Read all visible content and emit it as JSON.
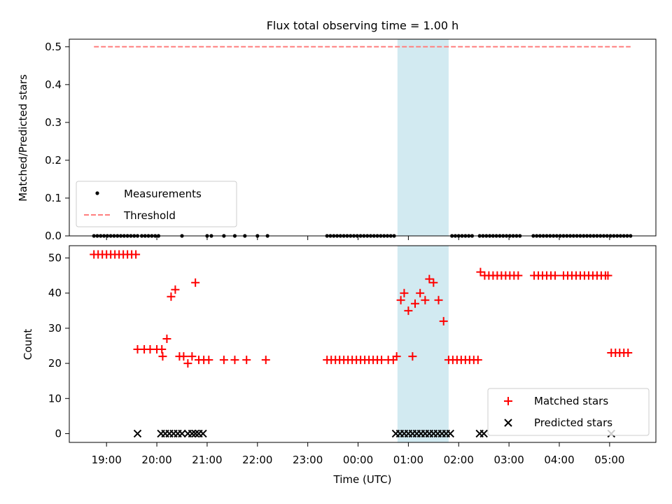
{
  "figure": {
    "title": "Flux total observing time = 1.00 h",
    "xlabel": "Time (UTC)",
    "xticks": [
      "19:00",
      "20:00",
      "21:00",
      "22:00",
      "23:00",
      "00:00",
      "01:00",
      "02:00",
      "03:00",
      "04:00",
      "05:00"
    ],
    "shade_color": "#add8e6"
  },
  "chart_data": [
    {
      "type": "scatter",
      "name": "top-panel",
      "ylabel": "Matched/Predicted stars",
      "ylim": [
        0,
        0.52
      ],
      "yticks": [
        "0.0",
        "0.1",
        "0.2",
        "0.3",
        "0.4",
        "0.5"
      ],
      "legend_position": "lower-left",
      "shaded_interval": [
        "00:47",
        "01:48"
      ],
      "threshold": {
        "name": "Threshold",
        "value": 0.5,
        "x_range": [
          "18:45",
          "05:25"
        ],
        "color": "#ff7f7f"
      },
      "measurements": {
        "name": "Measurements",
        "value": 0,
        "color": "#000000",
        "x": [
          "18:45",
          "18:49",
          "18:53",
          "18:57",
          "19:01",
          "19:05",
          "19:09",
          "19:13",
          "19:17",
          "19:21",
          "19:25",
          "19:29",
          "19:33",
          "19:37",
          "19:42",
          "19:46",
          "19:50",
          "19:54",
          "19:58",
          "20:02",
          "20:30",
          "21:00",
          "21:05",
          "21:20",
          "21:33",
          "21:45",
          "22:00",
          "22:12",
          "23:23",
          "23:27",
          "23:31",
          "23:35",
          "23:39",
          "23:43",
          "23:47",
          "23:51",
          "23:55",
          "23:59",
          "00:03",
          "00:07",
          "00:11",
          "00:15",
          "00:19",
          "00:23",
          "00:27",
          "00:31",
          "00:35",
          "00:39",
          "00:43",
          "01:52",
          "01:56",
          "02:00",
          "02:04",
          "02:08",
          "02:12",
          "02:16",
          "02:25",
          "02:29",
          "02:33",
          "02:37",
          "02:41",
          "02:45",
          "02:49",
          "02:53",
          "02:57",
          "03:01",
          "03:05",
          "03:09",
          "03:13",
          "03:29",
          "03:33",
          "03:37",
          "03:41",
          "03:45",
          "03:49",
          "03:53",
          "03:57",
          "04:01",
          "04:05",
          "04:09",
          "04:13",
          "04:17",
          "04:21",
          "04:25",
          "04:29",
          "04:33",
          "04:37",
          "04:41",
          "04:45",
          "04:49",
          "04:53",
          "04:57",
          "05:01",
          "05:05",
          "05:09",
          "05:13",
          "05:17",
          "05:21",
          "05:25"
        ]
      }
    },
    {
      "type": "scatter",
      "name": "bottom-panel",
      "ylabel": "Count",
      "ylim": [
        -2.5,
        53.5
      ],
      "yticks": [
        "0",
        "10",
        "20",
        "30",
        "40",
        "50"
      ],
      "legend_position": "lower-right",
      "shaded_interval": [
        "00:47",
        "01:48"
      ],
      "series": [
        {
          "name": "Matched stars",
          "marker": "plus",
          "color": "#ff0000",
          "points": [
            [
              "18:45",
              51
            ],
            [
              "18:50",
              51
            ],
            [
              "18:55",
              51
            ],
            [
              "19:00",
              51
            ],
            [
              "19:05",
              51
            ],
            [
              "19:10",
              51
            ],
            [
              "19:15",
              51
            ],
            [
              "19:20",
              51
            ],
            [
              "19:25",
              51
            ],
            [
              "19:30",
              51
            ],
            [
              "19:35",
              51
            ],
            [
              "19:37",
              24
            ],
            [
              "19:45",
              24
            ],
            [
              "19:52",
              24
            ],
            [
              "20:00",
              24
            ],
            [
              "20:06",
              24
            ],
            [
              "20:07",
              22
            ],
            [
              "20:12",
              27
            ],
            [
              "20:17",
              39
            ],
            [
              "20:22",
              41
            ],
            [
              "20:27",
              22
            ],
            [
              "20:32",
              22
            ],
            [
              "20:37",
              20
            ],
            [
              "20:42",
              22
            ],
            [
              "20:46",
              43
            ],
            [
              "20:50",
              21
            ],
            [
              "20:56",
              21
            ],
            [
              "21:02",
              21
            ],
            [
              "21:20",
              21
            ],
            [
              "21:33",
              21
            ],
            [
              "21:47",
              21
            ],
            [
              "22:10",
              21
            ],
            [
              "23:23",
              21
            ],
            [
              "23:28",
              21
            ],
            [
              "23:33",
              21
            ],
            [
              "23:38",
              21
            ],
            [
              "23:43",
              21
            ],
            [
              "23:48",
              21
            ],
            [
              "23:53",
              21
            ],
            [
              "23:58",
              21
            ],
            [
              "00:03",
              21
            ],
            [
              "00:08",
              21
            ],
            [
              "00:13",
              21
            ],
            [
              "00:18",
              21
            ],
            [
              "00:23",
              21
            ],
            [
              "00:28",
              21
            ],
            [
              "00:36",
              21
            ],
            [
              "00:42",
              21
            ],
            [
              "00:46",
              22
            ],
            [
              "00:51",
              38
            ],
            [
              "00:55",
              40
            ],
            [
              "01:00",
              35
            ],
            [
              "01:05",
              22
            ],
            [
              "01:08",
              37
            ],
            [
              "01:14",
              40
            ],
            [
              "01:20",
              38
            ],
            [
              "01:25",
              44
            ],
            [
              "01:30",
              43
            ],
            [
              "01:36",
              38
            ],
            [
              "01:42",
              32
            ],
            [
              "01:48",
              21
            ],
            [
              "01:53",
              21
            ],
            [
              "01:58",
              21
            ],
            [
              "02:03",
              21
            ],
            [
              "02:08",
              21
            ],
            [
              "02:13",
              21
            ],
            [
              "02:18",
              21
            ],
            [
              "02:23",
              21
            ],
            [
              "02:26",
              46
            ],
            [
              "02:31",
              45
            ],
            [
              "02:36",
              45
            ],
            [
              "02:41",
              45
            ],
            [
              "02:46",
              45
            ],
            [
              "02:51",
              45
            ],
            [
              "02:56",
              45
            ],
            [
              "03:01",
              45
            ],
            [
              "03:06",
              45
            ],
            [
              "03:11",
              45
            ],
            [
              "03:30",
              45
            ],
            [
              "03:35",
              45
            ],
            [
              "03:40",
              45
            ],
            [
              "03:45",
              45
            ],
            [
              "03:50",
              45
            ],
            [
              "03:55",
              45
            ],
            [
              "04:05",
              45
            ],
            [
              "04:10",
              45
            ],
            [
              "04:15",
              45
            ],
            [
              "04:20",
              45
            ],
            [
              "04:25",
              45
            ],
            [
              "04:30",
              45
            ],
            [
              "04:35",
              45
            ],
            [
              "04:40",
              45
            ],
            [
              "04:45",
              45
            ],
            [
              "04:50",
              45
            ],
            [
              "04:55",
              45
            ],
            [
              "04:58",
              45
            ],
            [
              "05:02",
              23
            ],
            [
              "05:07",
              23
            ],
            [
              "05:12",
              23
            ],
            [
              "05:17",
              23
            ],
            [
              "05:22",
              23
            ]
          ]
        },
        {
          "name": "Predicted stars",
          "marker": "x",
          "color": "#000000",
          "points": [
            [
              "19:37",
              0
            ],
            [
              "20:05",
              0
            ],
            [
              "20:10",
              0
            ],
            [
              "20:15",
              0
            ],
            [
              "20:20",
              0
            ],
            [
              "20:25",
              0
            ],
            [
              "20:30",
              0
            ],
            [
              "20:37",
              0
            ],
            [
              "20:42",
              0
            ],
            [
              "20:46",
              0
            ],
            [
              "20:50",
              0
            ],
            [
              "20:55",
              0
            ],
            [
              "00:45",
              0
            ],
            [
              "00:50",
              0
            ],
            [
              "00:55",
              0
            ],
            [
              "01:00",
              0
            ],
            [
              "01:05",
              0
            ],
            [
              "01:10",
              0
            ],
            [
              "01:15",
              0
            ],
            [
              "01:20",
              0
            ],
            [
              "01:25",
              0
            ],
            [
              "01:30",
              0
            ],
            [
              "01:35",
              0
            ],
            [
              "01:40",
              0
            ],
            [
              "01:45",
              0
            ],
            [
              "01:50",
              0
            ],
            [
              "02:25",
              0
            ],
            [
              "02:30",
              0
            ],
            [
              "05:02",
              0
            ]
          ]
        }
      ]
    }
  ]
}
